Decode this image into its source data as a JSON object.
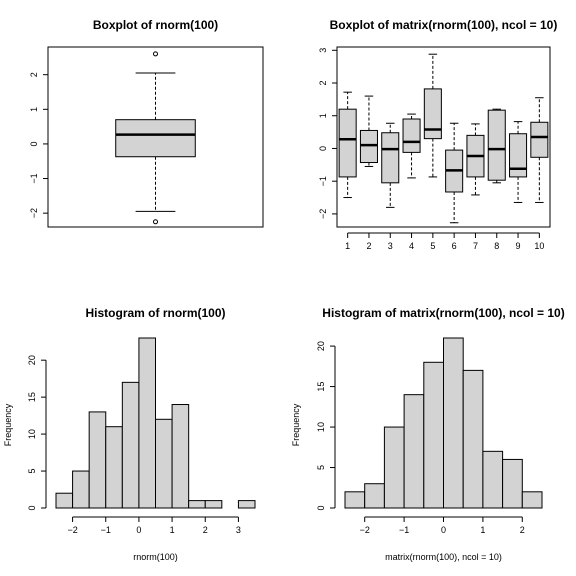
{
  "chart_data": [
    {
      "type": "box",
      "title": "Boxplot of rnorm(100)",
      "xlabel": "",
      "ylabel": "",
      "ylim": [
        -2.4,
        2.8
      ],
      "yticks": [
        -2,
        -1,
        0,
        1,
        2
      ],
      "boxes": [
        {
          "whisker_low": -1.95,
          "q1": -0.37,
          "median": 0.27,
          "q3": 0.7,
          "whisker_high": 2.05,
          "outliers": [
            -2.25,
            2.6
          ]
        }
      ]
    },
    {
      "type": "box",
      "title": "Boxplot of matrix(rnorm(100), ncol = 10)",
      "xlabel": "",
      "ylabel": "",
      "ylim": [
        -2.4,
        3.1
      ],
      "yticks": [
        -2,
        -1,
        0,
        1,
        2,
        3
      ],
      "categories": [
        "1",
        "2",
        "3",
        "4",
        "5",
        "6",
        "7",
        "8",
        "9",
        "10"
      ],
      "boxes": [
        {
          "whisker_low": -1.5,
          "q1": -0.87,
          "median": 0.28,
          "q3": 1.2,
          "whisker_high": 1.72,
          "outliers": []
        },
        {
          "whisker_low": -0.55,
          "q1": -0.43,
          "median": 0.1,
          "q3": 0.55,
          "whisker_high": 1.6,
          "outliers": []
        },
        {
          "whisker_low": -1.8,
          "q1": -1.05,
          "median": -0.02,
          "q3": 0.48,
          "whisker_high": 0.77,
          "outliers": []
        },
        {
          "whisker_low": -0.9,
          "q1": -0.12,
          "median": 0.2,
          "q3": 0.9,
          "whisker_high": 1.05,
          "outliers": []
        },
        {
          "whisker_low": -0.87,
          "q1": 0.3,
          "median": 0.58,
          "q3": 1.82,
          "whisker_high": 2.88,
          "outliers": []
        },
        {
          "whisker_low": -2.27,
          "q1": -1.33,
          "median": -0.67,
          "q3": -0.05,
          "whisker_high": 0.77,
          "outliers": []
        },
        {
          "whisker_low": -1.42,
          "q1": -0.87,
          "median": -0.23,
          "q3": 0.4,
          "whisker_high": 0.75,
          "outliers": []
        },
        {
          "whisker_low": -1.05,
          "q1": -0.97,
          "median": -0.02,
          "q3": 1.17,
          "whisker_high": 1.2,
          "outliers": []
        },
        {
          "whisker_low": -1.65,
          "q1": -0.87,
          "median": -0.62,
          "q3": 0.45,
          "whisker_high": 0.82,
          "outliers": []
        },
        {
          "whisker_low": -1.65,
          "q1": -0.27,
          "median": 0.35,
          "q3": 0.8,
          "whisker_high": 1.55,
          "outliers": []
        }
      ]
    },
    {
      "type": "bar",
      "title": "Histogram of rnorm(100)",
      "xlabel": "rnorm(100)",
      "ylabel": "Frequency",
      "xlim": [
        -2.5,
        3.5
      ],
      "ylim": [
        0,
        23
      ],
      "xticks": [
        -2,
        -1,
        0,
        1,
        2,
        3
      ],
      "yticks": [
        0,
        5,
        10,
        15,
        20
      ],
      "bin_width": 0.5,
      "bins": [
        {
          "x0": -2.5,
          "count": 2
        },
        {
          "x0": -2.0,
          "count": 5
        },
        {
          "x0": -1.5,
          "count": 13
        },
        {
          "x0": -1.0,
          "count": 11
        },
        {
          "x0": -0.5,
          "count": 17
        },
        {
          "x0": 0.0,
          "count": 23
        },
        {
          "x0": 0.5,
          "count": 12
        },
        {
          "x0": 1.0,
          "count": 14
        },
        {
          "x0": 1.5,
          "count": 1
        },
        {
          "x0": 2.0,
          "count": 1
        },
        {
          "x0": 2.5,
          "count": 0
        },
        {
          "x0": 3.0,
          "count": 1
        }
      ]
    },
    {
      "type": "bar",
      "title": "Histogram of matrix(rnorm(100), ncol = 10)",
      "xlabel": "matrix(rnorm(100), ncol = 10)",
      "ylabel": "Frequency",
      "xlim": [
        -2.5,
        2.5
      ],
      "ylim": [
        0,
        21
      ],
      "xticks": [
        -2,
        -1,
        0,
        1,
        2
      ],
      "yticks": [
        0,
        5,
        10,
        15,
        20
      ],
      "bin_width": 0.5,
      "bins": [
        {
          "x0": -2.5,
          "count": 2
        },
        {
          "x0": -2.0,
          "count": 3
        },
        {
          "x0": -1.5,
          "count": 10
        },
        {
          "x0": -1.0,
          "count": 14
        },
        {
          "x0": -0.5,
          "count": 18
        },
        {
          "x0": 0.0,
          "count": 21
        },
        {
          "x0": 0.5,
          "count": 17
        },
        {
          "x0": 1.0,
          "count": 7
        },
        {
          "x0": 1.5,
          "count": 6
        },
        {
          "x0": 2.0,
          "count": 2
        }
      ]
    }
  ]
}
